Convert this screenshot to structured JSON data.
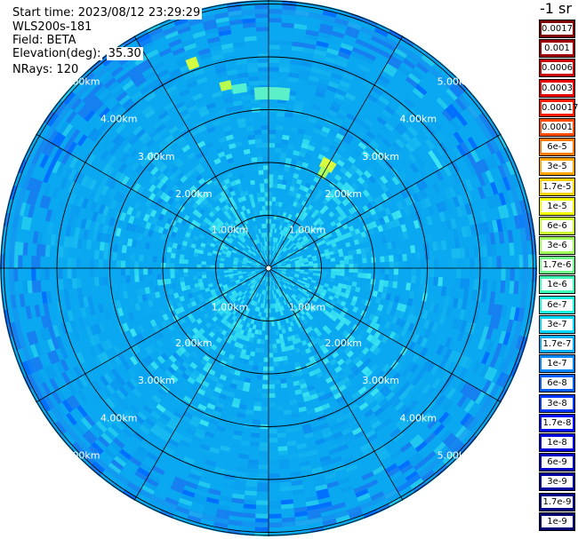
{
  "header": {
    "start_time": "Start time: 2023/08/12 23:29:29",
    "instrument": "WLS200s-181",
    "field": "Field: BETA",
    "elevation_label": "Elevation(deg):",
    "elevation_value": "35.30",
    "nrays": "NRays: 120"
  },
  "colorbar": {
    "unit": "-1 sr",
    "levels": [
      {
        "label": "0.0017",
        "color": "#800000"
      },
      {
        "label": "0.001",
        "color": "#a00000"
      },
      {
        "label": "0.0006",
        "color": "#c80000"
      },
      {
        "label": "0.0003",
        "color": "#e80000"
      },
      {
        "label": "0.00017",
        "color": "#ff1a00"
      },
      {
        "label": "0.0001",
        "color": "#ff4a00"
      },
      {
        "label": "6e-5",
        "color": "#ff7a00"
      },
      {
        "label": "3e-5",
        "color": "#ffa600"
      },
      {
        "label": "1.7e-5",
        "color": "#ffd200"
      },
      {
        "label": "1e-5",
        "color": "#f4ff00"
      },
      {
        "label": "6e-6",
        "color": "#c8ff30"
      },
      {
        "label": "3e-6",
        "color": "#a0ff58"
      },
      {
        "label": "1.7e-6",
        "color": "#70ff88"
      },
      {
        "label": "1e-6",
        "color": "#40ffb8"
      },
      {
        "label": "6e-7",
        "color": "#18f8e0"
      },
      {
        "label": "3e-7",
        "color": "#00d8ff"
      },
      {
        "label": "1.7e-7",
        "color": "#00b0ff"
      },
      {
        "label": "1e-7",
        "color": "#0088ff"
      },
      {
        "label": "6e-8",
        "color": "#0060ff"
      },
      {
        "label": "3e-8",
        "color": "#0038ff"
      },
      {
        "label": "1.7e-8",
        "color": "#0010ff"
      },
      {
        "label": "1e-8",
        "color": "#0000e0"
      },
      {
        "label": "6e-9",
        "color": "#0000c0"
      },
      {
        "label": "3e-9",
        "color": "#0000a0"
      },
      {
        "label": "1.7e-9",
        "color": "#000088"
      },
      {
        "label": "1e-9",
        "color": "#000070"
      }
    ]
  },
  "ppi": {
    "ring_labels": [
      "1.00km",
      "2.00km",
      "3.00km",
      "4.00km",
      "5.00km"
    ],
    "spoke_count": 12,
    "colors": {
      "background": "#0aa8f0",
      "outer_ring": "#1a8cf0",
      "inner_cyan": "#3ee6f2",
      "hotspot": "#d4ff40"
    }
  }
}
